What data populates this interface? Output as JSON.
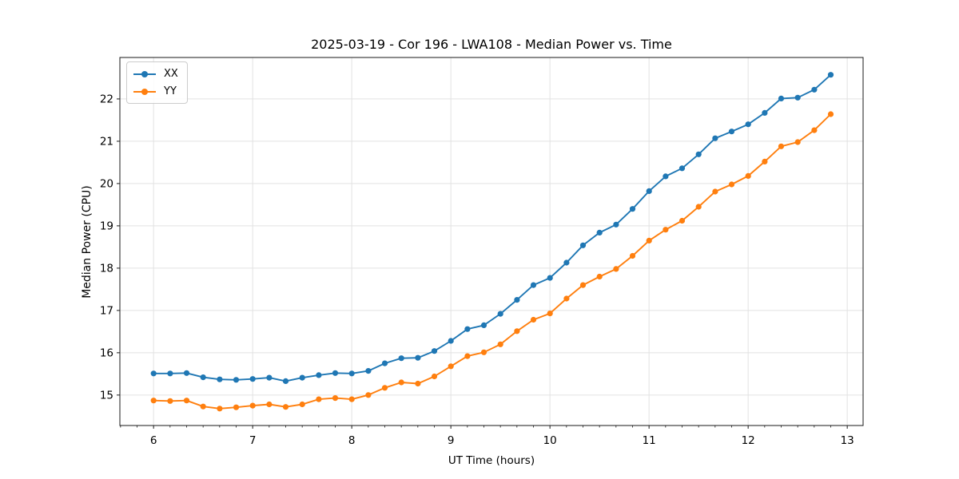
{
  "chart_data": {
    "type": "line",
    "title": "2025-03-19 - Cor 196 - LWA108 - Median Power vs. Time",
    "xlabel": "UT Time (hours)",
    "ylabel": "Median Power (CPU)",
    "x": [
      6.0,
      6.167,
      6.333,
      6.5,
      6.667,
      6.833,
      7.0,
      7.167,
      7.333,
      7.5,
      7.667,
      7.833,
      8.0,
      8.167,
      8.333,
      8.5,
      8.667,
      8.833,
      9.0,
      9.167,
      9.333,
      9.5,
      9.667,
      9.833,
      10.0,
      10.167,
      10.333,
      10.5,
      10.667,
      10.833,
      11.0,
      11.167,
      11.333,
      11.5,
      11.667,
      11.833,
      12.0,
      12.167,
      12.333,
      12.5,
      12.667,
      12.833
    ],
    "series": [
      {
        "name": "XX",
        "color": "#1f77b4",
        "values": [
          15.51,
          15.51,
          15.52,
          15.42,
          15.37,
          15.36,
          15.38,
          15.41,
          15.33,
          15.41,
          15.47,
          15.52,
          15.51,
          15.57,
          15.75,
          15.87,
          15.88,
          16.04,
          16.28,
          16.56,
          16.65,
          16.92,
          17.25,
          17.6,
          17.77,
          18.13,
          18.54,
          18.84,
          19.03,
          19.4,
          19.82,
          20.17,
          20.36,
          20.69,
          21.07,
          21.23,
          21.4,
          21.67,
          22.01,
          22.03,
          22.22,
          22.57
        ]
      },
      {
        "name": "YY",
        "color": "#ff7f0e",
        "values": [
          14.87,
          14.86,
          14.87,
          14.73,
          14.68,
          14.71,
          14.75,
          14.78,
          14.72,
          14.78,
          14.9,
          14.93,
          14.9,
          15.0,
          15.17,
          15.3,
          15.27,
          15.44,
          15.68,
          15.92,
          16.01,
          16.2,
          16.51,
          16.78,
          16.93,
          17.28,
          17.6,
          17.8,
          17.98,
          18.29,
          18.65,
          18.91,
          19.12,
          19.45,
          19.81,
          19.98,
          20.18,
          20.52,
          20.88,
          20.98,
          21.26,
          21.64
        ]
      }
    ],
    "xlim": [
      5.66,
      13.16
    ],
    "ylim": [
      14.28,
      22.98
    ],
    "xticks": [
      6,
      7,
      8,
      9,
      10,
      11,
      12,
      13
    ],
    "yticks": [
      15,
      16,
      17,
      18,
      19,
      20,
      21,
      22
    ],
    "x_minor_step": 0.1666667,
    "grid": true,
    "grid_color": "#e2e2e2",
    "legend": {
      "position": "upper left"
    },
    "marker": "circle"
  }
}
